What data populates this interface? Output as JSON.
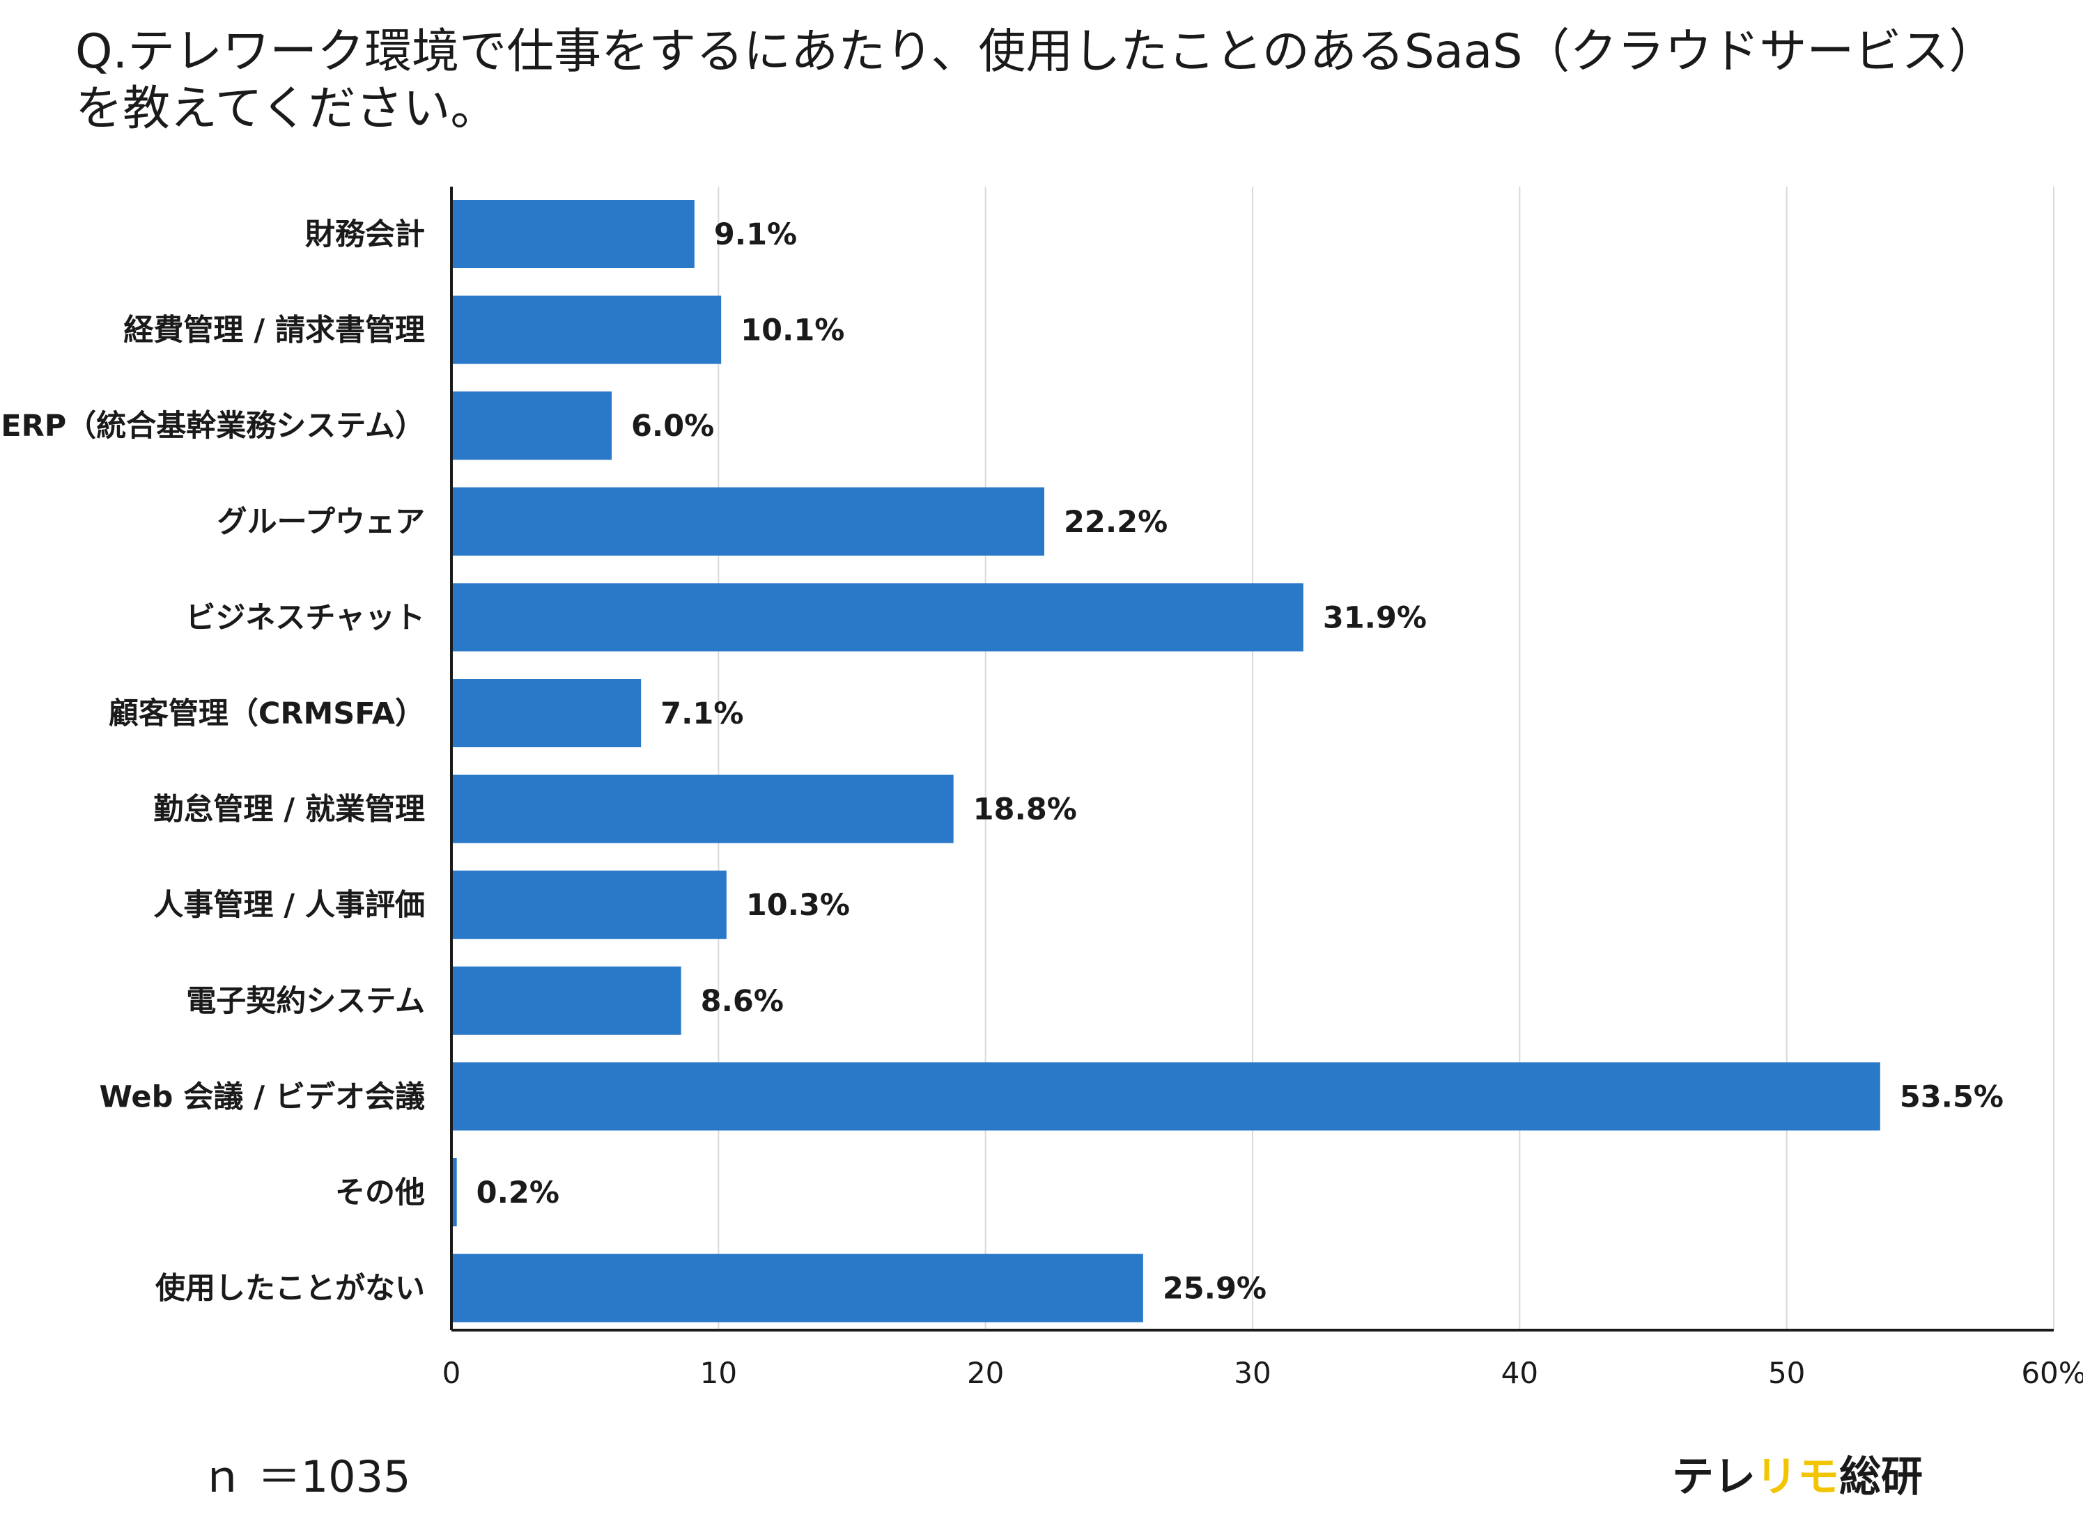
{
  "chart_data": {
    "type": "bar",
    "orientation": "horizontal",
    "title": "Q.テレワーク環境で仕事をするにあたり、使用したことのあるSaaS（クラウドサービス）を教えてください。",
    "categories": [
      "財務会計",
      "経費管理 / 請求書管理",
      "ERP（統合基幹業務システム）",
      "グループウェア",
      "ビジネスチャット",
      "顧客管理（CRMSFA）",
      "勤怠管理 / 就業管理",
      "人事管理 / 人事評価",
      "電子契約システム",
      "Web 会議 / ビデオ会議",
      "その他",
      "使用したことがない"
    ],
    "values": [
      9.1,
      10.1,
      6.0,
      22.2,
      31.9,
      7.1,
      18.8,
      10.3,
      8.6,
      53.5,
      0.2,
      25.9
    ],
    "value_labels": [
      "9.1%",
      "10.1%",
      "6.0%",
      "22.2%",
      "31.9%",
      "7.1%",
      "18.8%",
      "10.3%",
      "8.6%",
      "53.5%",
      "0.2%",
      "25.9%"
    ],
    "xlim": [
      0,
      60
    ],
    "xticks": [
      0,
      10,
      20,
      30,
      40,
      50,
      60
    ],
    "xtick_labels": [
      "0",
      "10",
      "20",
      "30",
      "40",
      "50",
      "60%"
    ],
    "grid": true,
    "colors": {
      "bar": "#2a78c8",
      "grid": "#d9d9d9"
    }
  },
  "footer": {
    "sample_size": "ｎ ＝1035",
    "brand_prefix": "テレ",
    "brand_highlight": "リモ",
    "brand_suffix": "総研",
    "brand_highlight_color": "#f2c500"
  }
}
